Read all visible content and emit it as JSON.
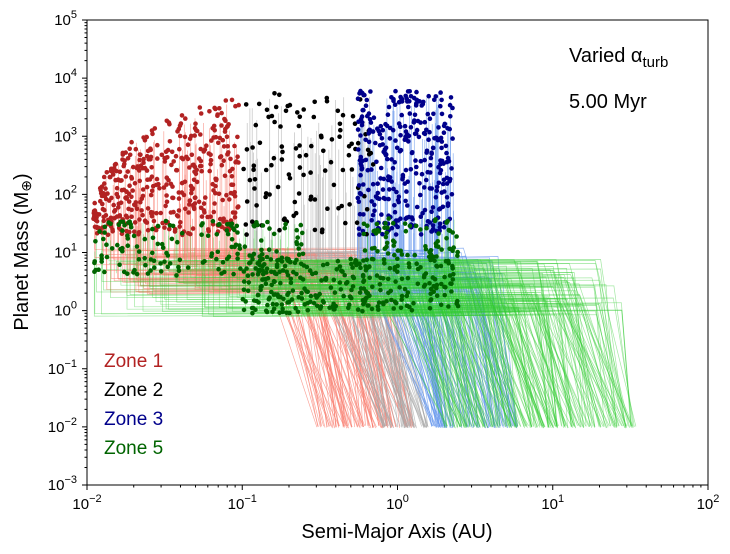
{
  "chart_data": {
    "type": "scatter",
    "xlabel": "Semi-Major Axis (AU)",
    "ylabel": "Planet Mass (M",
    "ylabel_symbol": "⊕",
    "ylabel_close": ")",
    "xscale": "log",
    "yscale": "log",
    "xlim": [
      0.01,
      100
    ],
    "ylim": [
      0.001,
      100000
    ],
    "x_ticks": [
      {
        "base": "10",
        "exp": "−2"
      },
      {
        "base": "10",
        "exp": "−1"
      },
      {
        "base": "10",
        "exp": "0"
      },
      {
        "base": "10",
        "exp": "1"
      },
      {
        "base": "10",
        "exp": "2"
      }
    ],
    "y_ticks": [
      {
        "base": "10",
        "exp": "−3"
      },
      {
        "base": "10",
        "exp": "−2"
      },
      {
        "base": "10",
        "exp": "−1"
      },
      {
        "base": "10",
        "exp": "0"
      },
      {
        "base": "10",
        "exp": "1"
      },
      {
        "base": "10",
        "exp": "2"
      },
      {
        "base": "10",
        "exp": "3"
      },
      {
        "base": "10",
        "exp": "4"
      },
      {
        "base": "10",
        "exp": "5"
      }
    ],
    "annotation_main": "Varied α",
    "annotation_sub": "turb",
    "time_label": "5.00 Myr",
    "legend_placement": "lower-left",
    "grid": false,
    "series": [
      {
        "name": "Zone 1",
        "color": "#b22222",
        "track_color": "#fa8072",
        "x_range": [
          0.011,
          0.095
        ],
        "y_range": [
          20,
          6000
        ],
        "start_x_range": [
          0.3,
          1.3
        ],
        "start_y": 0.01
      },
      {
        "name": "Zone 2",
        "color": "#000000",
        "track_color": "#a9a9a9",
        "x_range": [
          0.1,
          0.7
        ],
        "y_range": [
          20,
          6000
        ],
        "start_x_range": [
          0.8,
          1.6
        ],
        "start_y": 0.01
      },
      {
        "name": "Zone 3",
        "color": "#00008b",
        "track_color": "#6495ed",
        "x_range": [
          0.55,
          2.3
        ],
        "y_range": [
          20,
          6000
        ],
        "start_x_range": [
          1.6,
          6.0
        ],
        "start_y": 0.01
      },
      {
        "name": "Zone 5",
        "color": "#006400",
        "track_color": "#32cd32",
        "x_range": [
          0.011,
          2.5
        ],
        "y_range": [
          0.9,
          40
        ],
        "start_x_range": [
          2.0,
          35.0
        ],
        "start_y": 0.01
      }
    ]
  }
}
